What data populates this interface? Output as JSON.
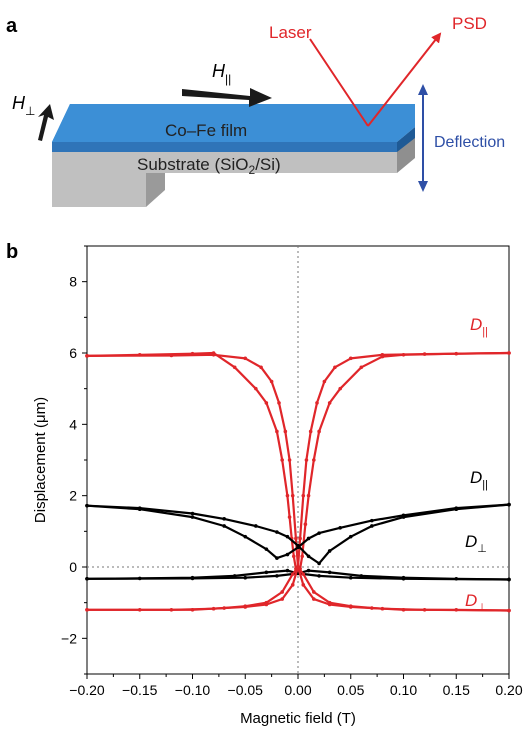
{
  "panel_a": {
    "panel_label": "a",
    "laser_label": "Laser",
    "psd_label": "PSD",
    "h_par_symbol": "H",
    "h_par_sub": "||",
    "h_perp_symbol": "H",
    "h_perp_sub": "⊥",
    "film_label": "Co–Fe film",
    "substrate_pre": "Substrate (SiO",
    "substrate_sub": "2",
    "substrate_post": "/Si)",
    "deflection_label": "Deflection",
    "colors": {
      "film": "#3a86d0",
      "substrate": "#bdbdbd",
      "laser": "#e0262a",
      "deflection": "#2e4fa6"
    }
  },
  "panel_b": {
    "panel_label": "b"
  },
  "chart_data": {
    "type": "line",
    "xlabel": "Magnetic field (T)",
    "ylabel": "Displacement (μm)",
    "xlim": [
      -0.2,
      0.2
    ],
    "ylim": [
      -3,
      9
    ],
    "x_ticks": [
      "−0.20",
      "−0.15",
      "−0.10",
      "−0.05",
      "0.00",
      "0.05",
      "0.10",
      "0.15",
      "0.20"
    ],
    "y_ticks": [
      "−2",
      "0",
      "2",
      "4",
      "6",
      "8"
    ],
    "reference_lines": {
      "x": 0,
      "y": 0,
      "style": "dotted"
    },
    "series": [
      {
        "name": "D||",
        "label_symbol": "D",
        "label_sub": "||",
        "color": "#e0262a",
        "branch_up": [
          [
            -0.2,
            5.92
          ],
          [
            -0.15,
            5.95
          ],
          [
            -0.1,
            5.98
          ],
          [
            -0.08,
            6.0
          ],
          [
            -0.06,
            5.6
          ],
          [
            -0.04,
            5.0
          ],
          [
            -0.03,
            4.6
          ],
          [
            -0.02,
            3.8
          ],
          [
            -0.015,
            3.0
          ],
          [
            -0.01,
            2.0
          ],
          [
            -0.008,
            1.4
          ],
          [
            -0.006,
            0.8
          ],
          [
            -0.004,
            0.3
          ],
          [
            -0.002,
            -0.05
          ],
          [
            0.0,
            0.0
          ],
          [
            0.002,
            0.8
          ],
          [
            0.005,
            2.0
          ],
          [
            0.008,
            3.0
          ],
          [
            0.012,
            3.8
          ],
          [
            0.018,
            4.6
          ],
          [
            0.025,
            5.2
          ],
          [
            0.035,
            5.6
          ],
          [
            0.05,
            5.85
          ],
          [
            0.08,
            5.95
          ],
          [
            0.12,
            5.97
          ],
          [
            0.2,
            6.0
          ]
        ],
        "branch_down": [
          [
            0.2,
            6.0
          ],
          [
            0.15,
            5.98
          ],
          [
            0.1,
            5.95
          ],
          [
            0.08,
            5.9
          ],
          [
            0.06,
            5.6
          ],
          [
            0.04,
            5.0
          ],
          [
            0.03,
            4.6
          ],
          [
            0.02,
            3.8
          ],
          [
            0.015,
            3.0
          ],
          [
            0.01,
            2.0
          ],
          [
            0.007,
            1.2
          ],
          [
            0.004,
            0.3
          ],
          [
            0.002,
            -0.05
          ],
          [
            0.0,
            0.0
          ],
          [
            -0.002,
            0.8
          ],
          [
            -0.005,
            2.0
          ],
          [
            -0.008,
            3.0
          ],
          [
            -0.012,
            3.8
          ],
          [
            -0.018,
            4.6
          ],
          [
            -0.025,
            5.2
          ],
          [
            -0.035,
            5.6
          ],
          [
            -0.05,
            5.85
          ],
          [
            -0.08,
            5.95
          ],
          [
            -0.12,
            5.93
          ],
          [
            -0.2,
            5.92
          ]
        ]
      },
      {
        "name": "D||",
        "label_symbol": "D",
        "label_sub": "||",
        "color": "#000000",
        "branch_up": [
          [
            -0.2,
            1.72
          ],
          [
            -0.15,
            1.62
          ],
          [
            -0.1,
            1.4
          ],
          [
            -0.07,
            1.15
          ],
          [
            -0.05,
            0.85
          ],
          [
            -0.03,
            0.5
          ],
          [
            -0.02,
            0.25
          ],
          [
            -0.01,
            0.35
          ],
          [
            0.0,
            0.55
          ],
          [
            0.01,
            0.8
          ],
          [
            0.02,
            0.95
          ],
          [
            0.04,
            1.1
          ],
          [
            0.07,
            1.3
          ],
          [
            0.1,
            1.45
          ],
          [
            0.15,
            1.65
          ],
          [
            0.2,
            1.75
          ]
        ],
        "branch_down": [
          [
            0.2,
            1.75
          ],
          [
            0.15,
            1.62
          ],
          [
            0.1,
            1.4
          ],
          [
            0.07,
            1.15
          ],
          [
            0.05,
            0.85
          ],
          [
            0.03,
            0.45
          ],
          [
            0.02,
            0.1
          ],
          [
            0.01,
            0.3
          ],
          [
            0.0,
            0.6
          ],
          [
            -0.01,
            0.85
          ],
          [
            -0.02,
            0.98
          ],
          [
            -0.04,
            1.15
          ],
          [
            -0.07,
            1.35
          ],
          [
            -0.1,
            1.5
          ],
          [
            -0.15,
            1.65
          ],
          [
            -0.2,
            1.72
          ]
        ]
      },
      {
        "name": "D⊥",
        "label_symbol": "D",
        "label_sub": "⊥",
        "color": "#000000",
        "branch_up": [
          [
            -0.2,
            -0.33
          ],
          [
            -0.15,
            -0.32
          ],
          [
            -0.1,
            -0.3
          ],
          [
            -0.06,
            -0.25
          ],
          [
            -0.03,
            -0.15
          ],
          [
            -0.01,
            -0.1
          ],
          [
            0.0,
            -0.18
          ],
          [
            0.02,
            -0.25
          ],
          [
            0.05,
            -0.3
          ],
          [
            0.1,
            -0.33
          ],
          [
            0.2,
            -0.35
          ]
        ],
        "branch_down": [
          [
            0.2,
            -0.35
          ],
          [
            0.15,
            -0.33
          ],
          [
            0.1,
            -0.3
          ],
          [
            0.06,
            -0.25
          ],
          [
            0.03,
            -0.15
          ],
          [
            0.01,
            -0.1
          ],
          [
            0.0,
            -0.18
          ],
          [
            -0.02,
            -0.25
          ],
          [
            -0.05,
            -0.3
          ],
          [
            -0.1,
            -0.32
          ],
          [
            -0.2,
            -0.33
          ]
        ]
      },
      {
        "name": "D⊥",
        "label_symbol": "D",
        "label_sub": "⊥",
        "color": "#e0262a",
        "branch_up": [
          [
            -0.2,
            -1.2
          ],
          [
            -0.15,
            -1.2
          ],
          [
            -0.1,
            -1.2
          ],
          [
            -0.07,
            -1.15
          ],
          [
            -0.05,
            -1.1
          ],
          [
            -0.03,
            -1.0
          ],
          [
            -0.015,
            -0.7
          ],
          [
            -0.005,
            -0.2
          ],
          [
            0.0,
            0.0
          ],
          [
            0.005,
            -0.5
          ],
          [
            0.015,
            -0.9
          ],
          [
            0.03,
            -1.05
          ],
          [
            0.05,
            -1.12
          ],
          [
            0.08,
            -1.17
          ],
          [
            0.12,
            -1.2
          ],
          [
            0.2,
            -1.22
          ]
        ],
        "branch_down": [
          [
            0.2,
            -1.22
          ],
          [
            0.15,
            -1.2
          ],
          [
            0.1,
            -1.2
          ],
          [
            0.07,
            -1.15
          ],
          [
            0.05,
            -1.1
          ],
          [
            0.03,
            -1.0
          ],
          [
            0.015,
            -0.7
          ],
          [
            0.005,
            -0.2
          ],
          [
            0.0,
            0.0
          ],
          [
            -0.005,
            -0.5
          ],
          [
            -0.015,
            -0.9
          ],
          [
            -0.03,
            -1.05
          ],
          [
            -0.05,
            -1.12
          ],
          [
            -0.08,
            -1.17
          ],
          [
            -0.12,
            -1.2
          ],
          [
            -0.2,
            -1.2
          ]
        ]
      }
    ]
  }
}
